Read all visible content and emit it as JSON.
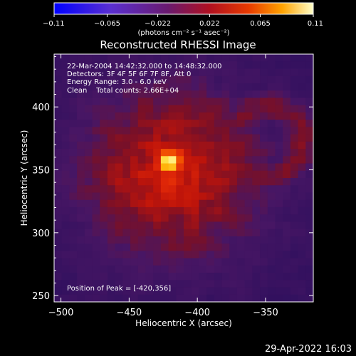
{
  "chart_data": {
    "type": "heatmap",
    "title": "Reconstructed RHESSI Image",
    "xlabel": "Heliocentric X (arcsec)",
    "ylabel": "Heliocentric Y (arcsec)",
    "xlim": [
      -505,
      -315
    ],
    "ylim": [
      245,
      442
    ],
    "x_ticks": [
      -500,
      -450,
      -400,
      -350
    ],
    "y_ticks": [
      250,
      300,
      350,
      400
    ],
    "x_tick_labels": [
      "−500",
      "−450",
      "−400",
      "−350"
    ],
    "y_tick_labels": [
      "250",
      "300",
      "350",
      "400"
    ],
    "colorbar": {
      "range": [
        -0.11,
        0.11
      ],
      "tick_values": [
        -0.11,
        -0.065,
        -0.022,
        0.022,
        0.065,
        0.11
      ],
      "tick_labels": [
        "−0.11",
        "−0.065",
        "−0.022",
        "0.022",
        "0.065",
        "0.11"
      ],
      "unit_label": "(photons cm⁻² s⁻¹ asec⁻²)"
    },
    "annotations": [
      "22-Mar-2004 14:42:32.000 to 14:48:32.000",
      "Detectors: 3F 4F 5F 6F 7F 8F, Att 0",
      "Energy Range: 3.0 - 6.0 keV",
      "Clean    Total counts: 2.66E+04"
    ],
    "peak_label": "Position of Peak = [-420,356]",
    "peak": {
      "x": -420,
      "y": 356
    },
    "footer_date": "29-Apr-2022 16:03",
    "colors": {
      "background": "#000000",
      "low": "#2b0a63",
      "mid": "#d0180a",
      "high": "#ffffff"
    }
  }
}
